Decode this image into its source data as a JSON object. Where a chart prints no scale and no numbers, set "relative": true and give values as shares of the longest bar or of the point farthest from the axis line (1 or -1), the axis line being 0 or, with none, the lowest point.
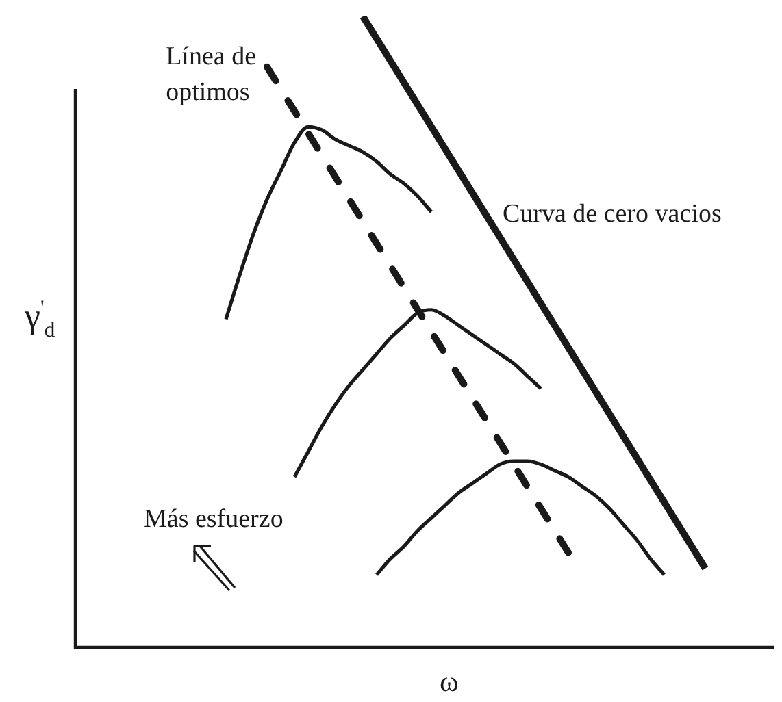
{
  "chart_data": {
    "type": "line",
    "relative": true,
    "xlabel": "ω",
    "ylabel": "γ$^{'}$$_{d}$",
    "legend": false,
    "marker": "none",
    "line_style": "solid",
    "annotations": [
      "Más esfuerzo"
    ],
    "categories": [
      null,
      null,
      null,
      null,
      null,
      null,
      null,
      null,
      null,
      null,
      null,
      null,
      null,
      null,
      null,
      null,
      null,
      null,
      null,
      null,
      null,
      null,
      null,
      null,
      null,
      null,
      null,
      null,
      null,
      null,
      null,
      null,
      null,
      null,
      null,
      null,
      null,
      null,
      null,
      null,
      null,
      null,
      null,
      null,
      null,
      null,
      null,
      null,
      null,
      null,
      null,
      null
    ],
    "series": [
      {
        "color": "#1a1a1a",
        "values": [
          null,
          null,
          null,
          null,
          null,
          null,
          null,
          null,
          null,
          null,
          null,
          0.52,
          0.59,
          0.655,
          0.71,
          0.755,
          0.8,
          0.825,
          0.82,
          0.805,
          0.795,
          0.785,
          0.77,
          0.75,
          0.735,
          0.715,
          0.69,
          null,
          null,
          null,
          null,
          null,
          null,
          null,
          null,
          null,
          null,
          null,
          null,
          null,
          null,
          null,
          null,
          null,
          null,
          null,
          null,
          null,
          null,
          null,
          null,
          null
        ]
      },
      {
        "color": "#1a1a1a",
        "values": [
          null,
          null,
          null,
          null,
          null,
          null,
          null,
          null,
          null,
          null,
          null,
          null,
          null,
          null,
          null,
          null,
          0.27,
          0.31,
          0.35,
          0.385,
          0.415,
          0.44,
          0.465,
          0.49,
          0.51,
          0.53,
          0.535,
          0.525,
          0.51,
          0.495,
          0.48,
          0.465,
          0.45,
          0.43,
          0.41,
          null,
          null,
          null,
          null,
          null,
          null,
          null,
          null,
          null,
          null,
          null,
          null,
          null,
          null,
          null,
          null,
          null
        ]
      },
      {
        "color": "#1a1a1a",
        "values": [
          null,
          null,
          null,
          null,
          null,
          null,
          null,
          null,
          null,
          null,
          null,
          null,
          null,
          null,
          null,
          null,
          null,
          null,
          null,
          null,
          null,
          null,
          0.115,
          0.14,
          0.16,
          0.185,
          0.205,
          0.225,
          0.245,
          0.26,
          0.275,
          0.29,
          0.295,
          0.295,
          0.29,
          0.28,
          0.27,
          0.255,
          0.24,
          0.22,
          0.195,
          0.17,
          0.14,
          0.115,
          null,
          null,
          null,
          null,
          null,
          null,
          null,
          null
        ]
      },
      {
        "name": "Línea de optimos",
        "color": "#1a1a1a",
        "line_style": "dashed",
        "values": [
          null,
          null,
          null,
          null,
          null,
          null,
          null,
          null,
          null,
          null,
          null,
          null,
          null,
          null,
          0.92,
          0.885,
          0.85,
          0.815,
          0.78,
          0.745,
          0.71,
          0.675,
          0.64,
          0.605,
          0.57,
          0.535,
          0.5,
          0.465,
          0.43,
          0.395,
          0.36,
          0.325,
          0.29,
          0.255,
          0.22,
          0.185,
          0.15,
          null,
          null,
          null,
          null,
          null,
          null,
          null,
          null,
          null,
          null,
          null,
          null,
          null,
          null,
          null
        ]
      },
      {
        "name": "Curva de cero vacios",
        "color": "#1a1a1a",
        "values": [
          null,
          null,
          null,
          null,
          null,
          null,
          null,
          null,
          null,
          null,
          null,
          null,
          null,
          null,
          null,
          null,
          null,
          null,
          null,
          null,
          null,
          1,
          0.965,
          0.93,
          0.895,
          0.86,
          0.825,
          0.79,
          0.755,
          0.72,
          0.685,
          0.65,
          0.615,
          0.58,
          0.545,
          0.51,
          0.475,
          0.44,
          0.405,
          0.37,
          0.335,
          0.3,
          0.265,
          0.23,
          0.195,
          0.16,
          0.125,
          null,
          null,
          null,
          null,
          null
        ]
      }
    ]
  }
}
